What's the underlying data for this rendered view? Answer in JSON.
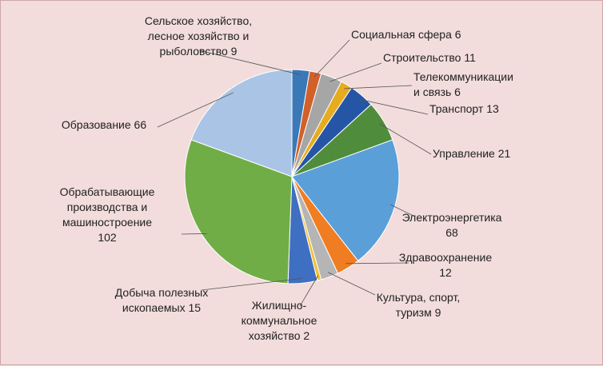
{
  "chart_data": {
    "type": "pie",
    "title": "",
    "start_angle_deg": 0,
    "slices": [
      {
        "label": [
          "Сельское хозяйство,",
          "лесное хозяйство и",
          "рыболовство 9"
        ],
        "value": 9,
        "color": "#3a78b8"
      },
      {
        "label": [
          "Социальная сфера 6"
        ],
        "value": 6,
        "color": "#d2602a"
      },
      {
        "label": [
          "Строительство 11"
        ],
        "value": 11,
        "color": "#a6a6a6"
      },
      {
        "label": [
          "Телекоммуникации",
          "и связь 6"
        ],
        "value": 6,
        "color": "#e6ac20"
      },
      {
        "label": [
          "Транспорт 13"
        ],
        "value": 13,
        "color": "#2556a6"
      },
      {
        "label": [
          "Управление  21"
        ],
        "value": 21,
        "color": "#4f8d3c"
      },
      {
        "label": [
          "Электроэнергетика",
          "68"
        ],
        "value": 68,
        "color": "#5a9fd8"
      },
      {
        "label": [
          "Здравоохранение",
          "12"
        ],
        "value": 12,
        "color": "#f07d22"
      },
      {
        "label": [
          "Культура, спорт,",
          "туризм 9"
        ],
        "value": 9,
        "color": "#b5b5b5"
      },
      {
        "label": [
          "Жилищно-",
          "коммунальное",
          "хозяйство 2"
        ],
        "value": 2,
        "color": "#f2c12e"
      },
      {
        "label": [
          "Добыча полезных",
          "ископаемых 15"
        ],
        "value": 15,
        "color": "#3f6fc0"
      },
      {
        "label": [
          "Обрабатывающие",
          "производства и",
          "машиностроение",
          "102"
        ],
        "value": 102,
        "color": "#70ad47"
      },
      {
        "label": [
          "Образование 66"
        ],
        "value": 66,
        "color": "#a9c4e4"
      }
    ]
  }
}
